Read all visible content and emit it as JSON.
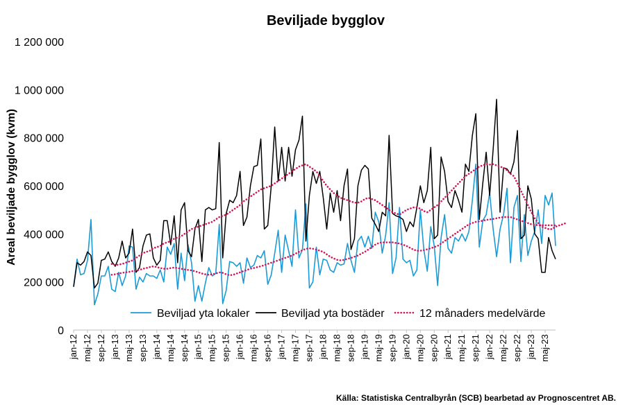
{
  "chart_data": {
    "type": "line",
    "title": "Beviljade bygglov",
    "xlabel": "",
    "ylabel": "Areal beviljade bygglov (kvm)",
    "ylim": [
      0,
      1200000
    ],
    "yticks": [
      0,
      200000,
      400000,
      600000,
      800000,
      1000000,
      1200000
    ],
    "ytick_labels": [
      "0",
      "200 000",
      "400 000",
      "600 000",
      "800 000",
      "1 000 000",
      "1 200 000"
    ],
    "xtick_labels": [
      "jan-12",
      "maj-12",
      "sep-12",
      "jan-13",
      "maj-13",
      "sep-13",
      "jan-14",
      "maj-14",
      "sep-14",
      "jan-15",
      "maj-15",
      "sep-15",
      "jan-16",
      "maj-16",
      "sep-16",
      "jan-17",
      "maj-17",
      "sep-17",
      "jan-18",
      "maj-18",
      "sep-18",
      "jan-19",
      "maj-19",
      "sep-19",
      "jan-20",
      "maj-20",
      "sep-20",
      "jan-21",
      "maj-21",
      "sep-21",
      "jan-22",
      "maj-22",
      "sep-22",
      "jan-23",
      "maj-23"
    ],
    "grid": false,
    "legend_position": "bottom",
    "source": "Källa: Statistiska Centralbyrån (SCB) bearbetad av Prognoscentret AB.",
    "series": [
      {
        "name": "Beviljad yta lokaler",
        "color": "#1a9bd7",
        "style": "solid",
        "values": [
          180000,
          295000,
          230000,
          235000,
          290000,
          460000,
          105000,
          150000,
          225000,
          225000,
          265000,
          170000,
          160000,
          240000,
          185000,
          225000,
          350000,
          345000,
          170000,
          220000,
          200000,
          235000,
          225000,
          225000,
          215000,
          250000,
          200000,
          345000,
          315000,
          360000,
          170000,
          320000,
          205000,
          355000,
          280000,
          120000,
          185000,
          120000,
          195000,
          260000,
          225000,
          235000,
          440000,
          110000,
          165000,
          285000,
          280000,
          265000,
          280000,
          195000,
          300000,
          260000,
          270000,
          310000,
          300000,
          330000,
          190000,
          230000,
          320000,
          415000,
          240000,
          395000,
          330000,
          265000,
          500000,
          300000,
          335000,
          525000,
          175000,
          200000,
          345000,
          230000,
          295000,
          290000,
          250000,
          240000,
          280000,
          270000,
          275000,
          360000,
          290000,
          240000,
          370000,
          390000,
          345000,
          390000,
          340000,
          490000,
          450000,
          320000,
          395000,
          530000,
          235000,
          300000,
          510000,
          295000,
          280000,
          290000,
          225000,
          250000,
          500000,
          335000,
          245000,
          430000,
          350000,
          185000,
          385000,
          480000,
          340000,
          320000,
          385000,
          370000,
          400000,
          370000,
          410000,
          540000,
          690000,
          345000,
          455000,
          480000,
          570000,
          420000,
          305000,
          420000,
          480000,
          590000,
          280000,
          510000,
          560000,
          285000,
          480000,
          310000,
          370000,
          410000,
          500000,
          360000,
          560000,
          520000,
          570000,
          350000
        ]
      },
      {
        "name": "Beviljad yta bostäder",
        "color": "#000000",
        "style": "solid",
        "values": [
          180000,
          280000,
          270000,
          285000,
          325000,
          310000,
          175000,
          195000,
          290000,
          295000,
          325000,
          285000,
          265000,
          300000,
          370000,
          300000,
          320000,
          420000,
          240000,
          260000,
          350000,
          395000,
          400000,
          300000,
          270000,
          290000,
          455000,
          455000,
          355000,
          475000,
          280000,
          500000,
          530000,
          330000,
          305000,
          420000,
          460000,
          285000,
          500000,
          510000,
          500000,
          505000,
          780000,
          300000,
          485000,
          540000,
          530000,
          560000,
          660000,
          435000,
          470000,
          600000,
          680000,
          685000,
          795000,
          420000,
          435000,
          600000,
          845000,
          620000,
          760000,
          620000,
          760000,
          640000,
          750000,
          790000,
          890000,
          370000,
          560000,
          660000,
          610000,
          660000,
          550000,
          420000,
          570000,
          490000,
          580000,
          455000,
          600000,
          670000,
          335000,
          380000,
          600000,
          665000,
          685000,
          670000,
          465000,
          440000,
          410000,
          490000,
          475000,
          810000,
          485000,
          475000,
          470000,
          460000,
          410000,
          450000,
          430000,
          510000,
          600000,
          530000,
          580000,
          760000,
          380000,
          395000,
          720000,
          660000,
          535000,
          510000,
          580000,
          540000,
          490000,
          690000,
          660000,
          810000,
          900000,
          460000,
          610000,
          740000,
          560000,
          750000,
          960000,
          490000,
          675000,
          670000,
          650000,
          700000,
          830000,
          380000,
          395000,
          600000,
          545000,
          400000,
          380000,
          240000,
          240000,
          385000,
          330000,
          295000
        ]
      },
      {
        "name": "12 månaders medelvärde",
        "color": "#d4145a",
        "style": "dotted",
        "values": [
          null,
          null,
          null,
          null,
          null,
          null,
          null,
          null,
          null,
          null,
          null,
          275000,
          270000,
          272000,
          275000,
          280000,
          285000,
          290000,
          300000,
          310000,
          320000,
          325000,
          330000,
          340000,
          345000,
          350000,
          360000,
          365000,
          370000,
          380000,
          385000,
          390000,
          400000,
          410000,
          420000,
          425000,
          430000,
          435000,
          440000,
          445000,
          450000,
          460000,
          470000,
          475000,
          480000,
          490000,
          500000,
          510000,
          520000,
          535000,
          545000,
          555000,
          565000,
          575000,
          585000,
          590000,
          595000,
          600000,
          610000,
          620000,
          630000,
          640000,
          650000,
          660000,
          670000,
          680000,
          685000,
          690000,
          680000,
          670000,
          660000,
          640000,
          620000,
          600000,
          585000,
          570000,
          560000,
          550000,
          545000,
          540000,
          535000,
          530000,
          530000,
          535000,
          545000,
          550000,
          545000,
          540000,
          530000,
          520000,
          510000,
          500000,
          490000,
          485000,
          480000,
          490000,
          500000,
          505000,
          510000,
          510000,
          505000,
          495000,
          490000,
          500000,
          510000,
          520000,
          535000,
          550000,
          565000,
          580000,
          595000,
          610000,
          625000,
          640000,
          650000,
          660000,
          670000,
          680000,
          685000,
          690000,
          688000,
          690000,
          685000,
          680000,
          675000,
          665000,
          650000,
          640000,
          610000,
          580000,
          550000,
          520000,
          490000,
          465000,
          445000,
          430000,
          425000,
          420000,
          420000,
          430000,
          435000,
          440000,
          445000
        ]
      },
      {
        "name": "12 månaders medelvärde (lokaler)",
        "legend": false,
        "color": "#d4145a",
        "style": "dotted",
        "values": [
          null,
          null,
          null,
          null,
          null,
          null,
          null,
          null,
          null,
          null,
          null,
          230000,
          232000,
          235000,
          238000,
          240000,
          242000,
          245000,
          248000,
          250000,
          255000,
          258000,
          262000,
          265000,
          262000,
          258000,
          255000,
          255000,
          258000,
          260000,
          258000,
          255000,
          252000,
          250000,
          248000,
          245000,
          240000,
          235000,
          232000,
          230000,
          232000,
          235000,
          240000,
          238000,
          232000,
          228000,
          230000,
          235000,
          240000,
          245000,
          250000,
          255000,
          258000,
          262000,
          265000,
          270000,
          275000,
          280000,
          285000,
          290000,
          295000,
          300000,
          305000,
          310000,
          318000,
          325000,
          332000,
          338000,
          340000,
          338000,
          335000,
          330000,
          325000,
          315000,
          305000,
          298000,
          292000,
          290000,
          292000,
          296000,
          300000,
          305000,
          310000,
          318000,
          325000,
          335000,
          345000,
          355000,
          362000,
          365000,
          365000,
          365000,
          365000,
          362000,
          360000,
          355000,
          350000,
          342000,
          335000,
          330000,
          330000,
          332000,
          336000,
          340000,
          345000,
          350000,
          360000,
          370000,
          380000,
          390000,
          400000,
          410000,
          420000,
          430000,
          440000,
          445000,
          450000,
          452000,
          455000,
          458000,
          460000,
          462000,
          465000,
          468000,
          470000,
          470000,
          470000,
          465000,
          460000,
          455000,
          450000,
          445000,
          440000,
          438000,
          436000,
          436000,
          436000,
          436000,
          436000,
          436000
        ]
      }
    ]
  }
}
